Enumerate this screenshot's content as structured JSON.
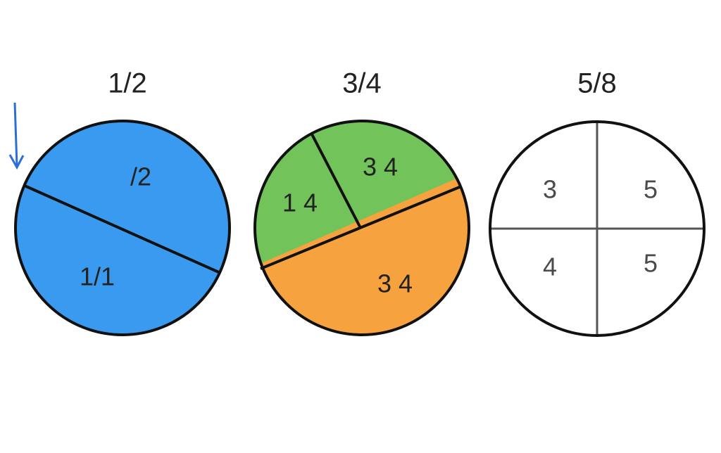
{
  "diagrams": [
    {
      "title": "1/2",
      "labels": [
        "/2",
        "1/1"
      ]
    },
    {
      "title": "3/4",
      "labels": [
        "3 4",
        "1 4",
        "3 4"
      ]
    },
    {
      "title": "5/8",
      "labels": [
        "3",
        "5",
        "4",
        "5"
      ]
    }
  ],
  "colors": {
    "blue": "#3a9af0",
    "green": "#72c35a",
    "orange": "#f6a23e",
    "white": "#ffffff",
    "arrow": "#2a6fd6"
  },
  "icons": {
    "pointer": "down-arrow-icon"
  }
}
